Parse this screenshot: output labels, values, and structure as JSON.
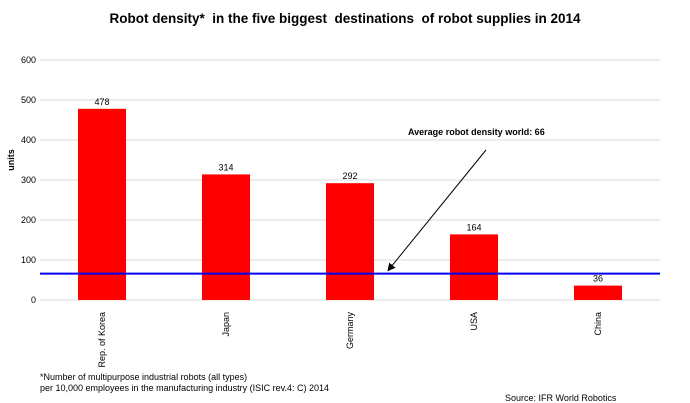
{
  "chart_data": {
    "type": "bar",
    "title": "Robot density*  in the five biggest  destinations  of robot supplies in 2014",
    "categories": [
      "Rep. of Korea",
      "Japan",
      "Germany",
      "USA",
      "China"
    ],
    "values": [
      478,
      314,
      292,
      164,
      36
    ],
    "data_labels": [
      "478",
      "314",
      "292",
      "164",
      "36"
    ],
    "xlabel": "",
    "ylabel": "units",
    "ylim": [
      0,
      600
    ],
    "yticks": [
      0,
      100,
      200,
      300,
      400,
      500,
      600
    ],
    "ytick_labels": [
      "0",
      "100",
      "200",
      "300",
      "400",
      "500",
      "600"
    ],
    "grid": true,
    "bar_color": "#ff0000",
    "reference_line": {
      "value": 66,
      "label": "Average robot density world: 66",
      "color": "#0000ee"
    }
  },
  "footnote": {
    "line1": "*Number of multipurpose industrial robots (all types)",
    "line2": "per 10,000 employees in the manufacturing industry (ISIC rev.4: C) 2014"
  },
  "source": "Source: IFR World Robotics"
}
